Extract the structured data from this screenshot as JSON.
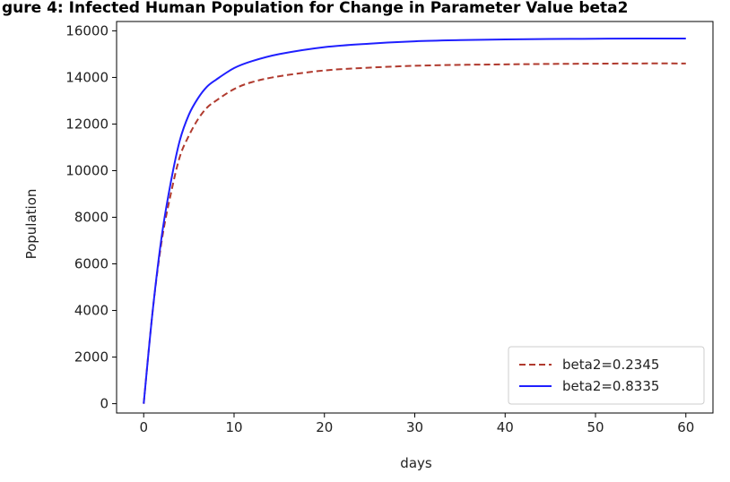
{
  "chart_data": {
    "type": "line",
    "title": "gure 4: Infected Human Population for Change in Parameter Value beta2",
    "xlabel": "days",
    "ylabel": "Population",
    "xlim": [
      -3,
      63
    ],
    "ylim": [
      -400,
      16400
    ],
    "xticks": [
      0,
      10,
      20,
      30,
      40,
      50,
      60
    ],
    "yticks": [
      0,
      2000,
      4000,
      6000,
      8000,
      10000,
      12000,
      14000,
      16000
    ],
    "grid": false,
    "legend": "bottom-right",
    "series": [
      {
        "name": "beta2=0.2345",
        "color": "#b03a2e",
        "linestyle": "dashed",
        "x": [
          0,
          1,
          2,
          3,
          4,
          5,
          6,
          7,
          8,
          10,
          12,
          15,
          20,
          25,
          30,
          35,
          40,
          45,
          50,
          55,
          60
        ],
        "y": [
          0,
          4000,
          7000,
          9000,
          10600,
          11500,
          12200,
          12700,
          13000,
          13500,
          13800,
          14050,
          14300,
          14420,
          14500,
          14540,
          14560,
          14580,
          14590,
          14600,
          14600
        ]
      },
      {
        "name": "beta2=0.8335",
        "color": "#1f1fff",
        "linestyle": "solid",
        "x": [
          0,
          1,
          2,
          3,
          4,
          5,
          6,
          7,
          8,
          10,
          12,
          15,
          20,
          25,
          30,
          35,
          40,
          45,
          50,
          55,
          60
        ],
        "y": [
          0,
          4000,
          7200,
          9500,
          11300,
          12400,
          13100,
          13600,
          13900,
          14400,
          14700,
          15000,
          15300,
          15450,
          15550,
          15600,
          15630,
          15650,
          15660,
          15670,
          15670
        ]
      }
    ]
  }
}
